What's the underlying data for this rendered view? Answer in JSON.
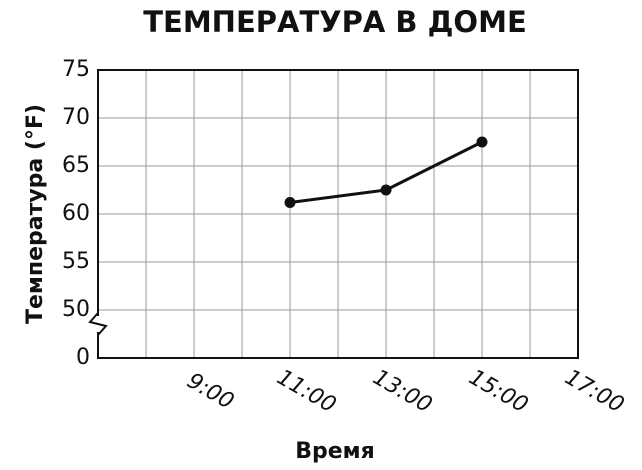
{
  "chart_data": {
    "type": "line",
    "title": "ТЕМПЕРАТУРА В ДОМЕ",
    "x_label": "Время",
    "y_label": "Температура (°F)",
    "x": [
      11,
      13,
      15
    ],
    "series": [
      {
        "color": "#111111",
        "values": [
          61.2,
          62.5,
          67.5
        ]
      }
    ],
    "xlim": [
      7,
      17
    ],
    "xticks": [
      {
        "value": 9,
        "label": "9:00"
      },
      {
        "value": 11,
        "label": "11:00"
      },
      {
        "value": 13,
        "label": "13:00"
      },
      {
        "value": 15,
        "label": "15:00"
      },
      {
        "value": 17,
        "label": "17:00"
      }
    ],
    "x_minor_ticks": [
      8,
      10,
      12,
      14,
      16
    ],
    "ylim": [
      0,
      75
    ],
    "yticks": [
      0,
      50,
      55,
      60,
      65,
      70,
      75
    ],
    "axis_break": true,
    "grid": true
  }
}
